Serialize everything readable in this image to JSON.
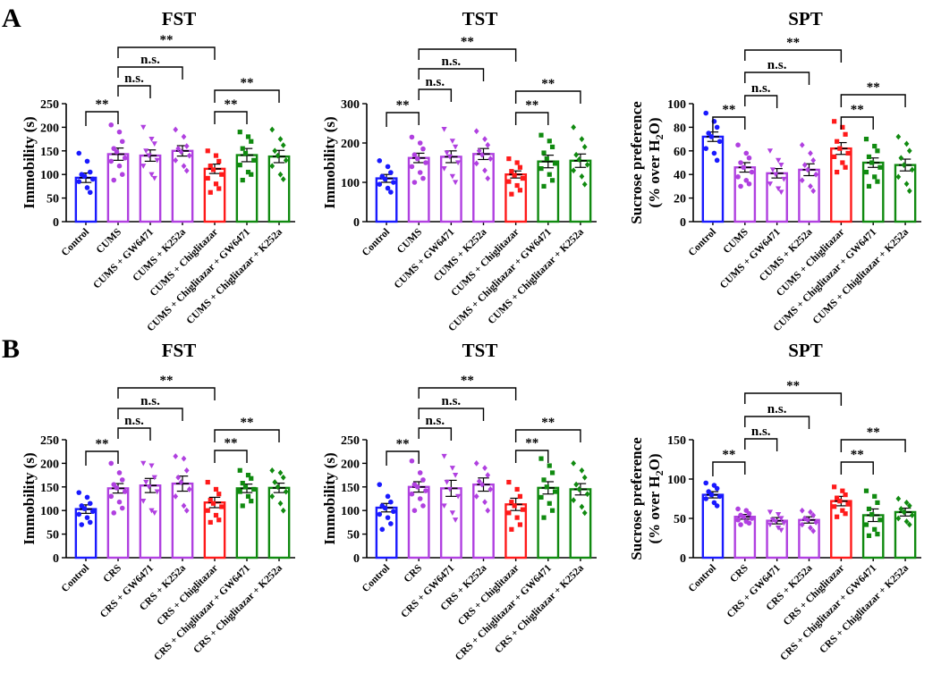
{
  "panels": [
    {
      "letter": "A"
    },
    {
      "letter": "B"
    }
  ],
  "chart_data": [
    {
      "type": "bar",
      "panel": "A",
      "title": "FST",
      "ylabel": "Immobility (s)",
      "ylabel2": "",
      "ylim": [
        0,
        250
      ],
      "yticks": [
        0,
        50,
        100,
        150,
        200,
        250
      ],
      "categories": [
        "Control",
        "CUMS",
        "CUMS + GW6471",
        "CUMS + K252a",
        "CUMS + Chiglitazar",
        "CUMS + Chiglitazar + GW6471",
        "CUMS + Chiglitazar + K252a"
      ],
      "colors": [
        "#1a1aff",
        "#b040e0",
        "#b040e0",
        "#b040e0",
        "#ff1a1a",
        "#108a10",
        "#108a10"
      ],
      "markers": [
        "circle",
        "circle",
        "triangle-down",
        "diamond",
        "square",
        "square",
        "diamond"
      ],
      "values": [
        93,
        143,
        140,
        150,
        112,
        141,
        138
      ],
      "sem": [
        10,
        13,
        12,
        11,
        10,
        14,
        13
      ],
      "points": [
        [
          145,
          128,
          105,
          100,
          96,
          90,
          85,
          72,
          62
        ],
        [
          205,
          190,
          170,
          155,
          148,
          135,
          128,
          118,
          100,
          88
        ],
        [
          200,
          175,
          165,
          150,
          140,
          130,
          118,
          100,
          92
        ],
        [
          195,
          180,
          160,
          155,
          148,
          140,
          130,
          118,
          108
        ],
        [
          150,
          140,
          128,
          118,
          110,
          100,
          92,
          80,
          70,
          62
        ],
        [
          190,
          180,
          170,
          155,
          145,
          130,
          120,
          105,
          100,
          88
        ],
        [
          195,
          175,
          162,
          150,
          140,
          130,
          118,
          100,
          90
        ]
      ],
      "significance": [
        {
          "from": 0,
          "to": 1,
          "label": "**"
        },
        {
          "from": 1,
          "to": 2,
          "label": "n.s."
        },
        {
          "from": 1,
          "to": 3,
          "label": "n.s."
        },
        {
          "from": 1,
          "to": 4,
          "label": "**"
        },
        {
          "from": 4,
          "to": 5,
          "label": "**"
        },
        {
          "from": 4,
          "to": 6,
          "label": "**"
        }
      ]
    },
    {
      "type": "bar",
      "panel": "A",
      "title": "TST",
      "ylabel": "Immobility (s)",
      "ylabel2": "",
      "ylim": [
        0,
        300
      ],
      "yticks": [
        0,
        100,
        200,
        300
      ],
      "categories": [
        "Control",
        "CUMS",
        "CUMS + GW6471",
        "CUMS + K252a",
        "CUMS + Chiglitazar",
        "CUMS + Chiglitazar + GW6471",
        "CUMS + Chiglitazar + K252a"
      ],
      "colors": [
        "#1a1aff",
        "#b040e0",
        "#b040e0",
        "#b040e0",
        "#ff1a1a",
        "#108a10",
        "#108a10"
      ],
      "markers": [
        "circle",
        "circle",
        "triangle-down",
        "diamond",
        "square",
        "square",
        "diamond"
      ],
      "values": [
        110,
        162,
        165,
        172,
        120,
        153,
        155
      ],
      "sem": [
        10,
        12,
        15,
        14,
        9,
        16,
        17
      ],
      "points": [
        [
          155,
          140,
          125,
          115,
          108,
          100,
          95,
          85,
          75
        ],
        [
          215,
          200,
          185,
          170,
          160,
          150,
          140,
          125,
          110,
          100
        ],
        [
          235,
          205,
          190,
          175,
          165,
          150,
          135,
          115,
          100
        ],
        [
          230,
          210,
          195,
          180,
          170,
          160,
          148,
          130,
          110
        ],
        [
          160,
          150,
          138,
          128,
          118,
          110,
          102,
          92,
          80,
          70
        ],
        [
          220,
          205,
          190,
          175,
          160,
          148,
          135,
          120,
          105,
          90
        ],
        [
          240,
          210,
          190,
          170,
          158,
          145,
          130,
          115,
          95
        ]
      ],
      "significance": [
        {
          "from": 0,
          "to": 1,
          "label": "**"
        },
        {
          "from": 1,
          "to": 2,
          "label": "n.s."
        },
        {
          "from": 1,
          "to": 3,
          "label": "n.s."
        },
        {
          "from": 1,
          "to": 4,
          "label": "**"
        },
        {
          "from": 4,
          "to": 5,
          "label": "**"
        },
        {
          "from": 4,
          "to": 6,
          "label": "**"
        }
      ]
    },
    {
      "type": "bar",
      "panel": "A",
      "title": "SPT",
      "ylabel": "Sucrose preference",
      "ylabel2": "(% over H",
      "ylim": [
        0,
        100
      ],
      "yticks": [
        0,
        20,
        40,
        60,
        80,
        100
      ],
      "categories": [
        "Control",
        "CUMS",
        "CUMS + GW6471",
        "CUMS + K252a",
        "CUMS + Chiglitazar",
        "CUMS + Chiglitazar + GW6471",
        "CUMS + Chiglitazar + K252a"
      ],
      "colors": [
        "#1a1aff",
        "#b040e0",
        "#b040e0",
        "#b040e0",
        "#ff1a1a",
        "#108a10",
        "#108a10"
      ],
      "markers": [
        "circle",
        "circle",
        "triangle-down",
        "diamond",
        "square",
        "square",
        "diamond"
      ],
      "values": [
        72,
        46,
        41,
        44,
        62,
        50,
        48
      ],
      "sem": [
        4,
        4,
        4,
        5,
        5,
        4,
        5
      ],
      "points": [
        [
          92,
          85,
          80,
          75,
          72,
          68,
          62,
          58,
          52
        ],
        [
          65,
          58,
          54,
          50,
          46,
          42,
          38,
          35,
          32,
          30
        ],
        [
          60,
          52,
          48,
          44,
          40,
          36,
          32,
          28,
          25
        ],
        [
          65,
          58,
          52,
          48,
          44,
          40,
          35,
          30,
          26
        ],
        [
          85,
          80,
          74,
          68,
          62,
          58,
          55,
          50,
          46,
          42
        ],
        [
          70,
          64,
          60,
          55,
          50,
          46,
          42,
          38,
          34,
          30
        ],
        [
          72,
          66,
          60,
          54,
          48,
          44,
          38,
          32,
          26
        ]
      ],
      "significance": [
        {
          "from": 0,
          "to": 1,
          "label": "**"
        },
        {
          "from": 1,
          "to": 2,
          "label": "n.s."
        },
        {
          "from": 1,
          "to": 3,
          "label": "n.s."
        },
        {
          "from": 1,
          "to": 4,
          "label": "**"
        },
        {
          "from": 4,
          "to": 5,
          "label": "**"
        },
        {
          "from": 4,
          "to": 6,
          "label": "**"
        }
      ]
    },
    {
      "type": "bar",
      "panel": "B",
      "title": "FST",
      "ylabel": "Immobility (s)",
      "ylabel2": "",
      "ylim": [
        0,
        250
      ],
      "yticks": [
        0,
        50,
        100,
        150,
        200,
        250
      ],
      "categories": [
        "Control",
        "CRS",
        "CRS + GW6471",
        "CRS + K252a",
        "CRS + Chiglitazar",
        "CRS + Chiglitazar + GW6471",
        "CRS + Chiglitazar + K252a"
      ],
      "colors": [
        "#1a1aff",
        "#b040e0",
        "#b040e0",
        "#b040e0",
        "#ff1a1a",
        "#108a10",
        "#108a10"
      ],
      "markers": [
        "circle",
        "circle",
        "triangle-down",
        "diamond",
        "square",
        "square",
        "diamond"
      ],
      "values": [
        103,
        147,
        153,
        157,
        117,
        147,
        148
      ],
      "sem": [
        9,
        10,
        15,
        16,
        11,
        9,
        10
      ],
      "points": [
        [
          138,
          128,
          115,
          110,
          104,
          98,
          92,
          85,
          75,
          70
        ],
        [
          200,
          180,
          165,
          155,
          148,
          140,
          130,
          118,
          105,
          95
        ],
        [
          200,
          195,
          170,
          160,
          150,
          140,
          120,
          100,
          95
        ],
        [
          215,
          210,
          185,
          170,
          160,
          145,
          130,
          110,
          100
        ],
        [
          160,
          145,
          135,
          122,
          115,
          108,
          100,
          90,
          80,
          75
        ],
        [
          185,
          175,
          168,
          158,
          150,
          145,
          140,
          130,
          120,
          110
        ],
        [
          185,
          180,
          170,
          160,
          150,
          140,
          130,
          115,
          100
        ]
      ],
      "significance": [
        {
          "from": 0,
          "to": 1,
          "label": "**"
        },
        {
          "from": 1,
          "to": 2,
          "label": "n.s."
        },
        {
          "from": 1,
          "to": 3,
          "label": "n.s."
        },
        {
          "from": 1,
          "to": 4,
          "label": "**"
        },
        {
          "from": 4,
          "to": 5,
          "label": "**"
        },
        {
          "from": 4,
          "to": 6,
          "label": "**"
        }
      ]
    },
    {
      "type": "bar",
      "panel": "B",
      "title": "TST",
      "ylabel": "Immobility (s)",
      "ylabel2": "",
      "ylim": [
        0,
        250
      ],
      "yticks": [
        0,
        50,
        100,
        150,
        200,
        250
      ],
      "categories": [
        "Control",
        "CRS",
        "CRS + GW6471",
        "CRS + K252a",
        "CRS + Chiglitazar",
        "CRS + Chiglitazar + GW6471",
        "CRS + Chiglitazar + K252a"
      ],
      "colors": [
        "#1a1aff",
        "#b040e0",
        "#b040e0",
        "#b040e0",
        "#ff1a1a",
        "#108a10",
        "#108a10"
      ],
      "markers": [
        "circle",
        "circle",
        "triangle-down",
        "diamond",
        "square",
        "square",
        "diamond"
      ],
      "values": [
        106,
        150,
        147,
        155,
        113,
        148,
        145
      ],
      "sem": [
        9,
        11,
        17,
        14,
        13,
        13,
        12
      ],
      "points": [
        [
          155,
          130,
          118,
          110,
          105,
          98,
          92,
          85,
          72,
          60
        ],
        [
          205,
          180,
          165,
          155,
          150,
          142,
          135,
          125,
          110,
          100
        ],
        [
          215,
          190,
          175,
          160,
          145,
          130,
          110,
          95,
          80
        ],
        [
          200,
          190,
          175,
          162,
          155,
          145,
          130,
          118,
          100
        ],
        [
          160,
          145,
          130,
          118,
          110,
          102,
          95,
          85,
          70,
          60
        ],
        [
          210,
          195,
          180,
          165,
          150,
          140,
          128,
          115,
          100,
          85
        ],
        [
          200,
          185,
          170,
          155,
          145,
          135,
          122,
          108,
          95
        ]
      ],
      "significance": [
        {
          "from": 0,
          "to": 1,
          "label": "**"
        },
        {
          "from": 1,
          "to": 2,
          "label": "n.s."
        },
        {
          "from": 1,
          "to": 3,
          "label": "n.s."
        },
        {
          "from": 1,
          "to": 4,
          "label": "**"
        },
        {
          "from": 4,
          "to": 5,
          "label": "**"
        },
        {
          "from": 4,
          "to": 6,
          "label": "**"
        }
      ]
    },
    {
      "type": "bar",
      "panel": "B",
      "title": "SPT",
      "ylabel": "Sucrose preference",
      "ylabel2": "(% over H",
      "ylim": [
        0,
        150
      ],
      "yticks": [
        0,
        50,
        100,
        150
      ],
      "categories": [
        "Control",
        "CRS",
        "CRS + GW6471",
        "CRS + K252a",
        "CRS + Chiglitazar",
        "CRS + Chiglitazar + GW6471",
        "CRS + Chiglitazar + K252a"
      ],
      "colors": [
        "#1a1aff",
        "#b040e0",
        "#b040e0",
        "#b040e0",
        "#ff1a1a",
        "#108a10",
        "#108a10"
      ],
      "markers": [
        "circle",
        "circle",
        "triangle-down",
        "diamond",
        "square",
        "square",
        "diamond"
      ],
      "values": [
        80,
        52,
        47,
        48,
        72,
        54,
        58
      ],
      "sem": [
        4,
        3,
        4,
        4,
        6,
        8,
        5
      ],
      "points": [
        [
          95,
          92,
          88,
          84,
          80,
          78,
          75,
          70,
          66
        ],
        [
          62,
          60,
          56,
          54,
          52,
          50,
          48,
          46,
          44,
          42
        ],
        [
          58,
          55,
          50,
          48,
          46,
          44,
          42,
          38,
          35
        ],
        [
          60,
          58,
          54,
          50,
          48,
          45,
          42,
          38,
          34
        ],
        [
          90,
          85,
          80,
          76,
          72,
          68,
          65,
          60,
          56,
          52
        ],
        [
          85,
          78,
          70,
          62,
          55,
          48,
          42,
          36,
          30,
          28
        ],
        [
          75,
          70,
          66,
          62,
          58,
          54,
          50,
          46,
          42
        ]
      ],
      "significance": [
        {
          "from": 0,
          "to": 1,
          "label": "**"
        },
        {
          "from": 1,
          "to": 2,
          "label": "n.s."
        },
        {
          "from": 1,
          "to": 3,
          "label": "n.s."
        },
        {
          "from": 1,
          "to": 4,
          "label": "**"
        },
        {
          "from": 4,
          "to": 5,
          "label": "**"
        },
        {
          "from": 4,
          "to": 6,
          "label": "**"
        }
      ]
    }
  ]
}
